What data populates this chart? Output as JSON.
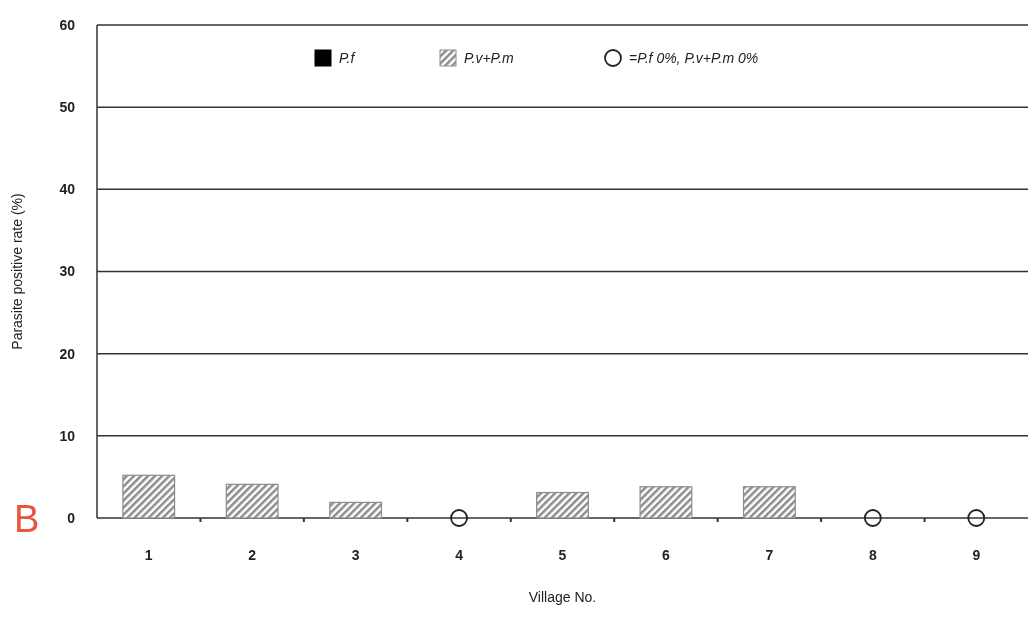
{
  "chart_data": {
    "type": "bar",
    "xlabel": "Village No.",
    "ylabel": "Parasite positive rate (%)",
    "categories": [
      "1",
      "2",
      "3",
      "4",
      "5",
      "6",
      "7",
      "8",
      "9"
    ],
    "series": [
      {
        "name": "P.f",
        "color": "#000000",
        "values": [
          0,
          0,
          0,
          0,
          0,
          0,
          0,
          0,
          0
        ]
      },
      {
        "name": "P.v+P.m",
        "color": "#8c8c8c",
        "values": [
          5.2,
          4.1,
          1.9,
          null,
          3.1,
          3.8,
          3.8,
          null,
          null
        ]
      },
      {
        "name": "=P.f 0%, P.v+P.m 0%",
        "type": "scatter",
        "color": "#222222",
        "x": [
          "4",
          "8",
          "9"
        ],
        "values": [
          0,
          0,
          0
        ],
        "marker": "circle"
      }
    ],
    "ylim": [
      0,
      60
    ],
    "yticks": [
      0,
      10,
      20,
      30,
      40,
      50,
      60
    ],
    "grid": "y",
    "legend": "top",
    "annotations": [
      "B"
    ]
  }
}
